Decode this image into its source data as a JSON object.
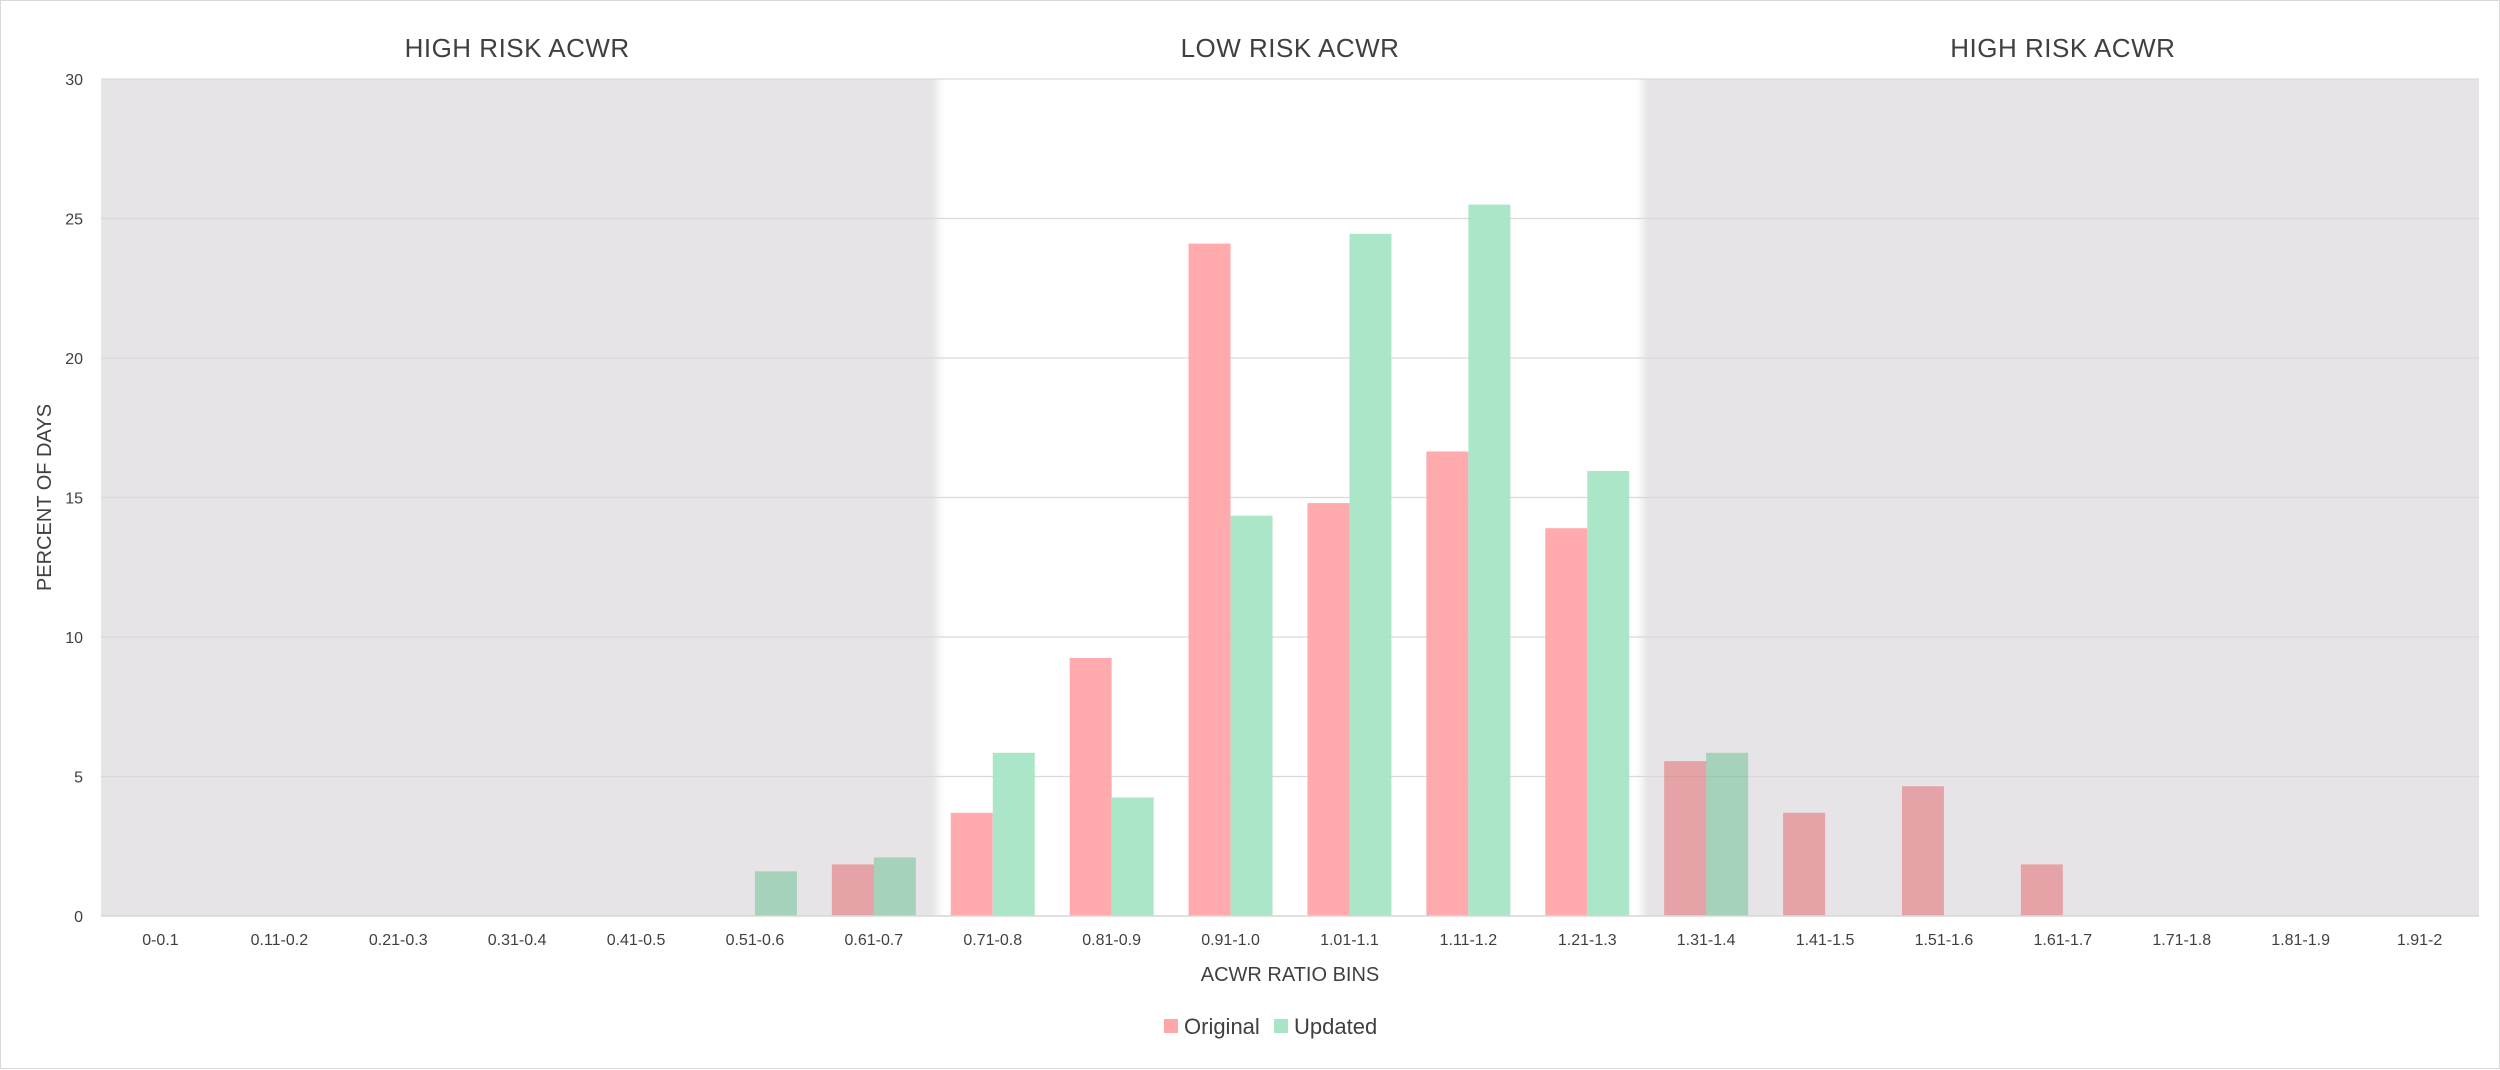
{
  "chart_data": {
    "type": "bar",
    "xlabel": "ACWR RATIO BINS",
    "ylabel": "PERCENT OF DAYS",
    "ylim": [
      0,
      30
    ],
    "yticks": [
      0,
      5,
      10,
      15,
      20,
      25,
      30
    ],
    "grid": true,
    "legend_position": "bottom",
    "categories": [
      "0-0.1",
      "0.11-0.2",
      "0.21-0.3",
      "0.31-0.4",
      "0.41-0.5",
      "0.51-0.6",
      "0.61-0.7",
      "0.71-0.8",
      "0.81-0.9",
      "0.91-1.0",
      "1.01-1.1",
      "1.11-1.2",
      "1.21-1.3",
      "1.31-1.4",
      "1.41-1.5",
      "1.51-1.6",
      "1.61-1.7",
      "1.71-1.8",
      "1.81-1.9",
      "1.91-2"
    ],
    "series": [
      {
        "name": "Original",
        "color": "#ffa7a9",
        "values": [
          0,
          0,
          0,
          0,
          0,
          0,
          1.85,
          3.7,
          9.25,
          24.1,
          14.8,
          16.65,
          13.9,
          5.55,
          3.7,
          4.65,
          1.85,
          0,
          0,
          0
        ]
      },
      {
        "name": "Updated",
        "color": "#a8e5c6",
        "values": [
          0,
          0,
          0,
          0,
          0,
          1.6,
          2.1,
          5.85,
          4.25,
          14.35,
          24.45,
          25.5,
          15.95,
          5.85,
          0,
          0,
          0,
          0,
          0,
          0
        ]
      }
    ],
    "zones": [
      {
        "label": "HIGH RISK ACWR",
        "risk": "high",
        "from_category": 0,
        "to_category": 6,
        "color": "#e6e4e6"
      },
      {
        "label": "LOW RISK ACWR",
        "risk": "low",
        "from_category": 7,
        "to_category": 12,
        "color": "#ffffff"
      },
      {
        "label": "HIGH RISK ACWR",
        "risk": "high",
        "from_category": 13,
        "to_category": 19,
        "color": "#e6e4e6"
      }
    ]
  }
}
